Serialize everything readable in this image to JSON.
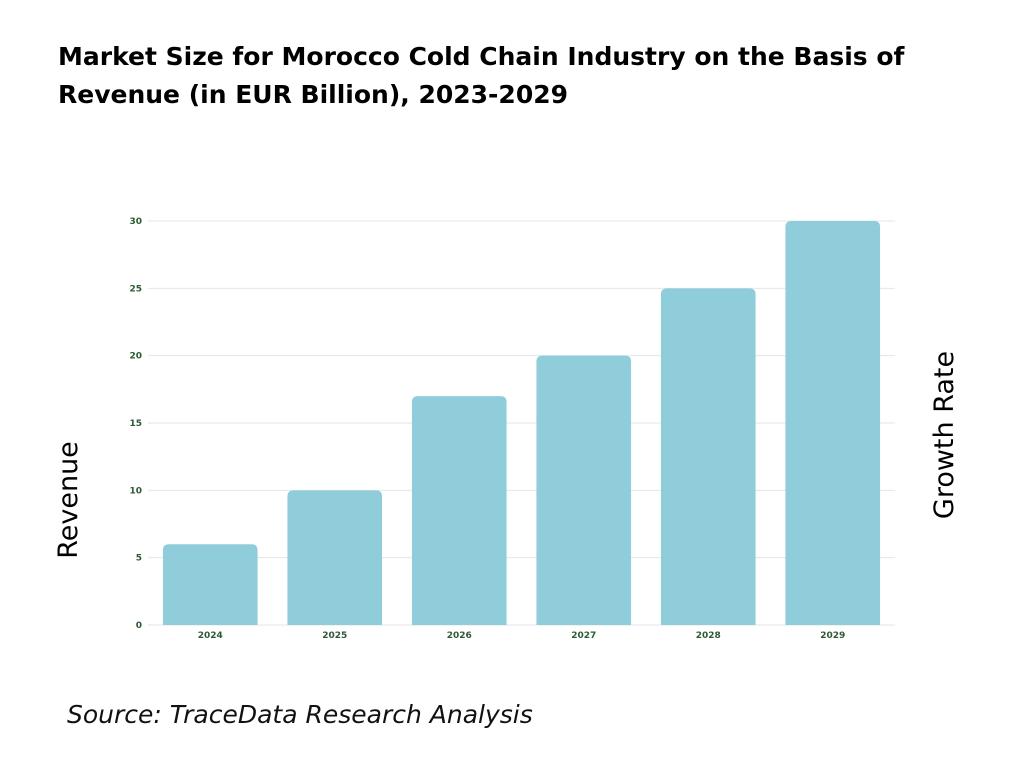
{
  "chart_data": {
    "type": "bar",
    "title": "Market Size for Morocco Cold Chain Industry on the Basis of Revenue (in EUR Billion), 2023-2029",
    "categories": [
      "2024",
      "2025",
      "2026",
      "2027",
      "2028",
      "2029"
    ],
    "values": [
      6,
      10,
      17,
      20,
      25,
      30
    ],
    "ylabel": "Revenue",
    "y2label": "Growth Rate",
    "ylim": [
      0,
      30
    ],
    "yticks": [
      0,
      5,
      10,
      15,
      20,
      25,
      30
    ],
    "grid": true,
    "colors": {
      "bar": "#8ecdd9",
      "tick_label": "#2d5a34",
      "grid": "#e6e6e6"
    }
  },
  "source": "Source: TraceData Research Analysis"
}
